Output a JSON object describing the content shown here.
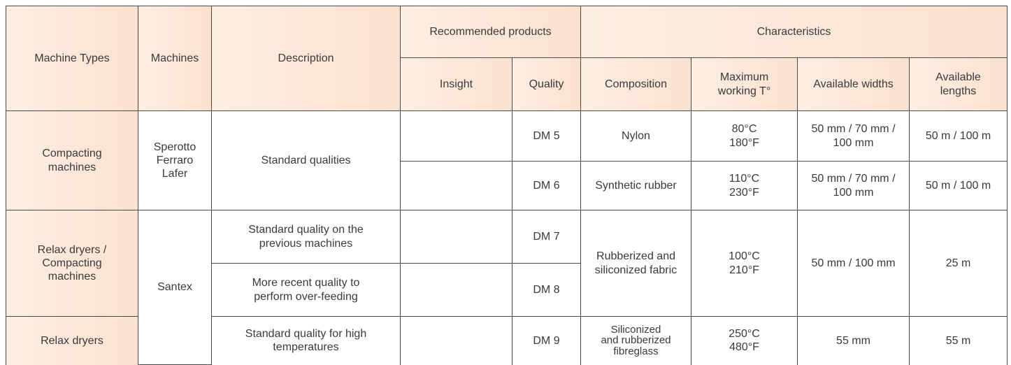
{
  "table": {
    "header": [
      [
        "Machine Types",
        "Machines",
        "Description",
        "Recommended products",
        "Characteristics"
      ],
      [
        "Insight",
        "Quality",
        "Composition",
        "Maximum\nworking T°",
        "Available widths",
        "Available\nlengths"
      ]
    ],
    "rows": [
      [
        "Compacting\nmachines",
        "Sperotto\nFerraro\nLafer",
        "Standard qualities",
        "DM 5",
        "Nylon",
        "80°C\n180°F",
        "50 mm / 70 mm /\n100 mm",
        "50 m / 100 m"
      ],
      [
        "DM 6",
        "Synthetic rubber",
        "110°C\n230°F",
        "50 mm / 70 mm /\n100 mm",
        "50 m / 100 m"
      ],
      [
        "Relax dryers /\nCompacting\nmachines",
        "Santex",
        "Standard quality on the\nprevious machines",
        "DM 7",
        "Rubberized and\nsiliconized fabric",
        "100°C\n210°F",
        "50 mm / 100 mm",
        "25 m"
      ],
      [
        "More recent quality to\nperform over-feeding",
        "DM 8"
      ],
      [
        "Relax dryers",
        "Standard quality for high\ntemperatures",
        "DM 9",
        "Siliconized\nand rubberized\nfibreglass",
        "250°C\n480°F",
        "55 mm",
        "55 m"
      ]
    ]
  }
}
